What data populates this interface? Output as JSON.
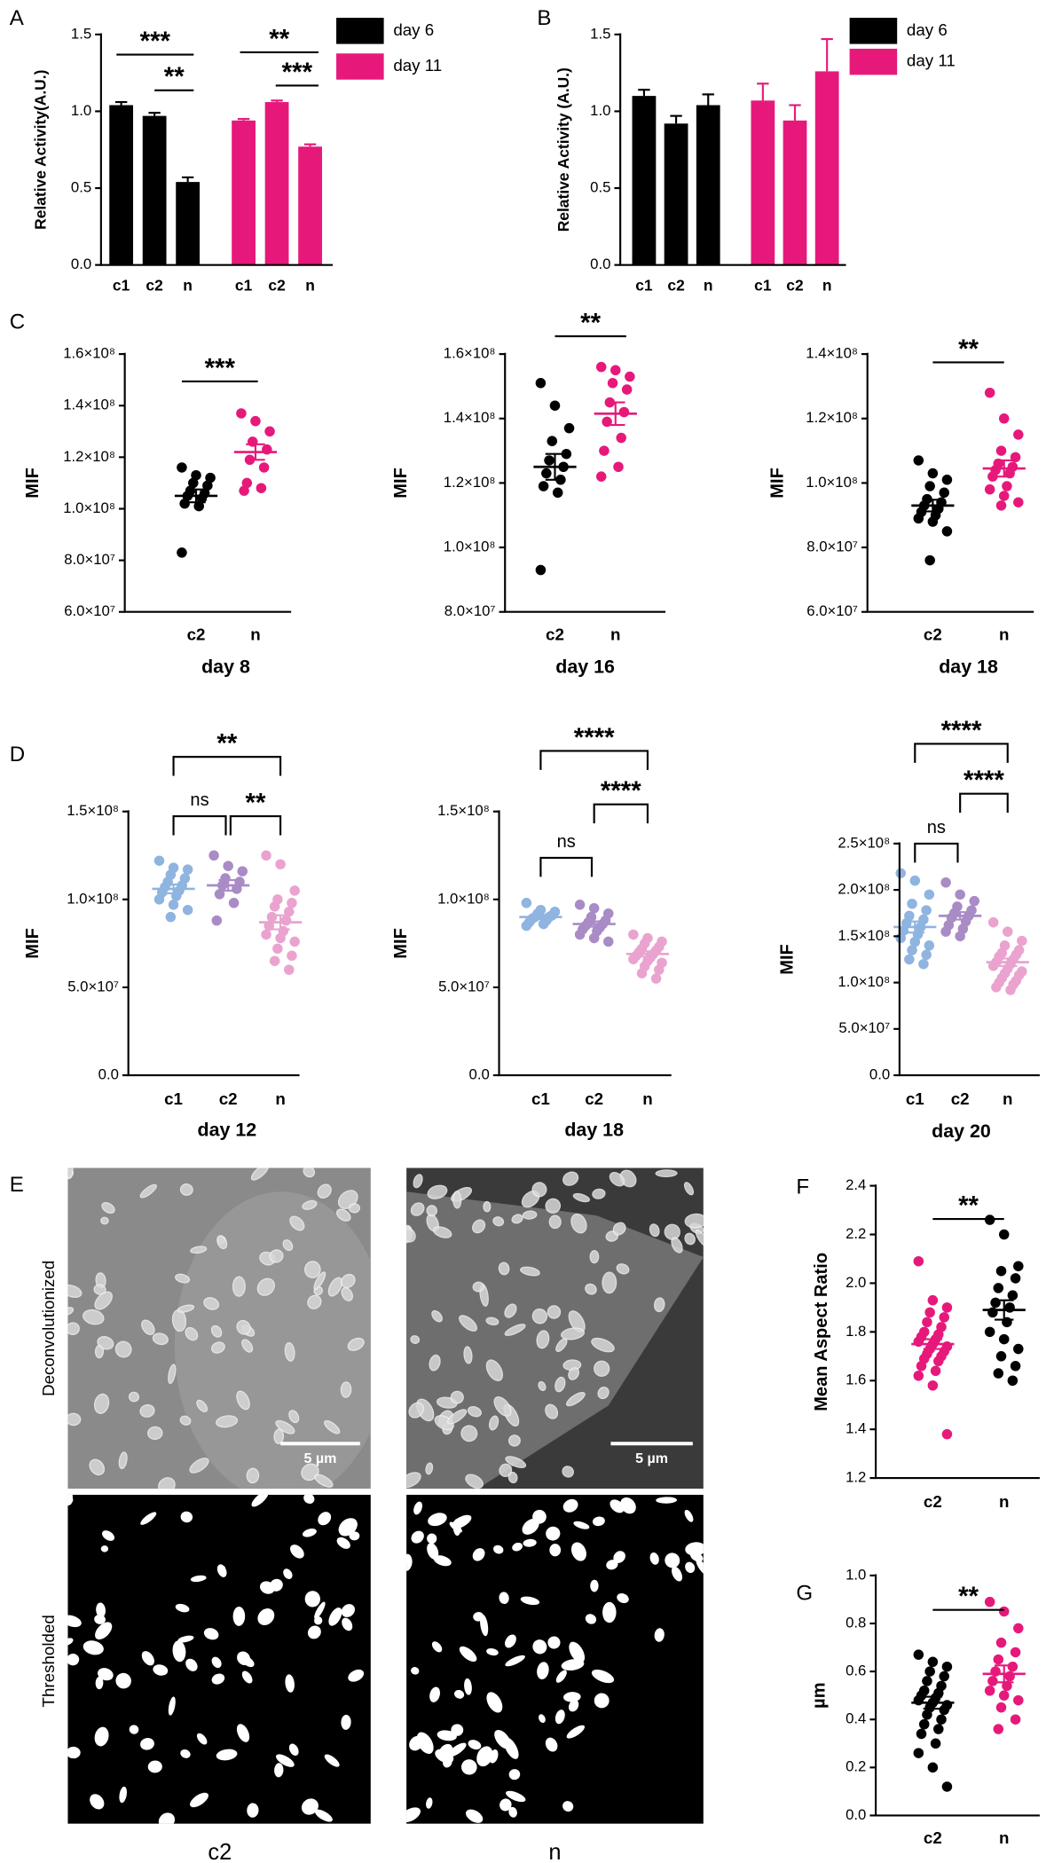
{
  "chart_data": [
    {
      "type": "bar",
      "panel": "A",
      "ylabel": "Relative Activity(A.U.)",
      "categories": [
        "c1",
        "c2",
        "n"
      ],
      "series": [
        {
          "name": "day 6",
          "color": "#000000",
          "values": [
            1.04,
            0.97,
            0.54
          ],
          "errors": [
            0.02,
            0.02,
            0.03
          ]
        },
        {
          "name": "day 11",
          "color": "#e6197b",
          "values": [
            0.94,
            1.06,
            0.77
          ],
          "errors": [
            0.01,
            0.01,
            0.015
          ]
        }
      ],
      "ylim": [
        0,
        1.5
      ],
      "yticks": [
        {
          "value": 0,
          "label": "0.0"
        },
        0.5,
        {
          "value": 1,
          "label": "1.0"
        },
        1.5
      ],
      "annotations": [
        "***",
        "**",
        "**",
        "***"
      ]
    },
    {
      "type": "bar",
      "panel": "B",
      "ylabel": "Relative Activity (A.U.)",
      "categories": [
        "c1",
        "c2",
        "n"
      ],
      "series": [
        {
          "name": "day 6",
          "color": "#000000",
          "values": [
            1.1,
            0.92,
            1.04
          ],
          "errors": [
            0.04,
            0.05,
            0.07
          ]
        },
        {
          "name": "day 11",
          "color": "#e6197b",
          "values": [
            1.07,
            0.94,
            1.26
          ],
          "errors": [
            0.11,
            0.1,
            0.21
          ]
        }
      ],
      "ylim": [
        0,
        1.5
      ],
      "yticks": [
        {
          "value": 0,
          "label": "0.0"
        },
        0.5,
        {
          "value": 1,
          "label": "1.0"
        },
        1.5
      ],
      "annotations": []
    },
    {
      "type": "dot",
      "panel": "C",
      "ylabel": "MIF",
      "xlabel": "day 8",
      "groups": [
        {
          "label": "c2",
          "color": "#000000",
          "values": [
            116000000.0,
            113000000.0,
            112000000.0,
            110000000.0,
            109000000.0,
            107000000.0,
            106000000.0,
            105000000.0,
            104000000.0,
            102000000.0,
            101000000.0,
            83000000.0
          ],
          "mean": 105000000.0,
          "sem": 2500000.0
        },
        {
          "label": "n",
          "color": "#e6197b",
          "values": [
            137000000.0,
            134000000.0,
            130000000.0,
            126000000.0,
            123000000.0,
            119000000.0,
            116000000.0,
            110000000.0,
            108000000.0,
            107000000.0
          ],
          "mean": 122000000.0,
          "sem": 3000000.0
        }
      ],
      "ylim": [
        60000000.0,
        160000000.0
      ],
      "yticks": [
        {
          "value": 60000000.0,
          "label": "6.0×10⁷"
        },
        {
          "value": 80000000.0,
          "label": "8.0×10⁷"
        },
        {
          "value": 100000000.0,
          "label": "1.0×10⁸"
        },
        {
          "value": 120000000.0,
          "label": "1.2×10⁸"
        },
        {
          "value": 140000000.0,
          "label": "1.4×10⁸"
        },
        {
          "value": 160000000.0,
          "label": "1.6×10⁸"
        }
      ],
      "annotations": [
        "***"
      ]
    },
    {
      "type": "dot",
      "ylabel": "MIF",
      "xlabel": "day 16",
      "groups": [
        {
          "label": "c2",
          "color": "#000000",
          "values": [
            151000000.0,
            144000000.0,
            137000000.0,
            133000000.0,
            129000000.0,
            127000000.0,
            125000000.0,
            123000000.0,
            121000000.0,
            119000000.0,
            117000000.0,
            93000000.0
          ],
          "mean": 125000000.0,
          "sem": 4000000.0
        },
        {
          "label": "n",
          "color": "#e6197b",
          "values": [
            156000000.0,
            155000000.0,
            153000000.0,
            151000000.0,
            149000000.0,
            145000000.0,
            142000000.0,
            139000000.0,
            134000000.0,
            130000000.0,
            125000000.0,
            122000000.0
          ],
          "mean": 141500000.0,
          "sem": 3500000.0
        }
      ],
      "ylim": [
        80000000.0,
        160000000.0
      ],
      "yticks": [
        {
          "value": 80000000.0,
          "label": "8.0×10⁷"
        },
        {
          "value": 100000000.0,
          "label": "1.0×10⁸"
        },
        {
          "value": 120000000.0,
          "label": "1.2×10⁸"
        },
        {
          "value": 140000000.0,
          "label": "1.4×10⁸"
        },
        {
          "value": 160000000.0,
          "label": "1.6×10⁸"
        }
      ],
      "annotations": [
        "**"
      ]
    },
    {
      "type": "dot",
      "ylabel": "MIF",
      "xlabel": "day 18",
      "groups": [
        {
          "label": "c2",
          "color": "#000000",
          "values": [
            107000000.0,
            103000000.0,
            101000000.0,
            99000000.0,
            97000000.0,
            95000000.0,
            94000000.0,
            93000000.0,
            92000000.0,
            91000000.0,
            90000000.0,
            89000000.0,
            88000000.0,
            85000000.0,
            76000000.0
          ],
          "mean": 93000000.0,
          "sem": 1800000.0
        },
        {
          "label": "n",
          "color": "#e6197b",
          "values": [
            128000000.0,
            120000000.0,
            115000000.0,
            110000000.0,
            108000000.0,
            106000000.0,
            105000000.0,
            104000000.0,
            103000000.0,
            102000000.0,
            99000000.0,
            98000000.0,
            96000000.0,
            94000000.0,
            93000000.0
          ],
          "mean": 104500000.0,
          "sem": 2500000.0
        }
      ],
      "ylim": [
        60000000.0,
        140000000.0
      ],
      "yticks": [
        {
          "value": 60000000.0,
          "label": "6.0×10⁷"
        },
        {
          "value": 80000000.0,
          "label": "8.0×10⁷"
        },
        {
          "value": 100000000.0,
          "label": "1.0×10⁸"
        },
        {
          "value": 120000000.0,
          "label": "1.2×10⁸"
        },
        {
          "value": 140000000.0,
          "label": "1.4×10⁸"
        }
      ],
      "annotations": [
        "**"
      ]
    },
    {
      "type": "dot",
      "panel": "D",
      "ylabel": "MIF",
      "xlabel": "day 12",
      "groups": [
        {
          "label": "c1",
          "color": "#8fb4e0",
          "values": [
            122000000.0,
            118000000.0,
            117000000.0,
            114000000.0,
            112000000.0,
            110000000.0,
            108000000.0,
            107000000.0,
            105000000.0,
            104000000.0,
            102000000.0,
            100000000.0,
            97000000.0,
            94000000.0,
            90000000.0
          ],
          "mean": 106000000.0,
          "sem": 2500000.0
        },
        {
          "label": "c2",
          "color": "#a98bc6",
          "values": [
            125000000.0,
            119000000.0,
            116000000.0,
            112000000.0,
            110000000.0,
            108000000.0,
            106000000.0,
            103000000.0,
            98000000.0,
            88000000.0
          ],
          "mean": 108000000.0,
          "sem": 3000000.0
        },
        {
          "label": "n",
          "color": "#eaa3cf",
          "values": [
            125000000.0,
            120000000.0,
            105000000.0,
            100000000.0,
            98000000.0,
            96000000.0,
            93000000.0,
            90000000.0,
            88000000.0,
            85000000.0,
            82000000.0,
            80000000.0,
            78000000.0,
            76000000.0,
            72000000.0,
            68000000.0,
            65000000.0,
            60000000.0
          ],
          "mean": 87000000.0,
          "sem": 4000000.0
        }
      ],
      "ylim": [
        0,
        150000000.0
      ],
      "yticks": [
        {
          "value": 0,
          "label": "0.0"
        },
        {
          "value": 50000000.0,
          "label": "5.0×10⁷"
        },
        {
          "value": 100000000.0,
          "label": "1.0×10⁸"
        },
        {
          "value": 150000000.0,
          "label": "1.5×10⁸"
        }
      ],
      "annotations": [
        "**",
        "ns",
        "**"
      ]
    },
    {
      "type": "dot",
      "ylabel": "MIF",
      "xlabel": "day 18",
      "groups": [
        {
          "label": "c1",
          "color": "#8fb4e0",
          "values": [
            98000000.0,
            94000000.0,
            93000000.0,
            92000000.0,
            91000000.0,
            90000000.0,
            90000000.0,
            89000000.0,
            88000000.0,
            87000000.0,
            86000000.0,
            85000000.0
          ],
          "mean": 90000000.0,
          "sem": 1200000.0
        },
        {
          "label": "c2",
          "color": "#a98bc6",
          "values": [
            97000000.0,
            95000000.0,
            92000000.0,
            90000000.0,
            88000000.0,
            87000000.0,
            86000000.0,
            85000000.0,
            84000000.0,
            83000000.0,
            82000000.0,
            80000000.0,
            78000000.0,
            76000000.0
          ],
          "mean": 86000000.0,
          "sem": 1500000.0
        },
        {
          "label": "n",
          "color": "#eaa3cf",
          "values": [
            80000000.0,
            78000000.0,
            76000000.0,
            75000000.0,
            73000000.0,
            72000000.0,
            71000000.0,
            70000000.0,
            69000000.0,
            68000000.0,
            67000000.0,
            66000000.0,
            65000000.0,
            64000000.0,
            62000000.0,
            60000000.0,
            58000000.0,
            55000000.0
          ],
          "mean": 69000000.0,
          "sem": 1500000.0
        }
      ],
      "ylim": [
        0,
        150000000.0
      ],
      "yticks": [
        {
          "value": 0,
          "label": "0.0"
        },
        {
          "value": 50000000.0,
          "label": "5.0×10⁷"
        },
        {
          "value": 100000000.0,
          "label": "1.0×10⁸"
        },
        {
          "value": 150000000.0,
          "label": "1.5×10⁸"
        }
      ],
      "annotations": [
        "****",
        "****",
        "ns"
      ]
    },
    {
      "type": "dot",
      "ylabel": "MIF",
      "xlabel": "day 20",
      "groups": [
        {
          "label": "c1",
          "color": "#8fb4e0",
          "values": [
            218000000.0,
            210000000.0,
            195000000.0,
            185000000.0,
            178000000.0,
            172000000.0,
            168000000.0,
            164000000.0,
            160000000.0,
            156000000.0,
            152000000.0,
            148000000.0,
            144000000.0,
            140000000.0,
            135000000.0,
            130000000.0,
            125000000.0,
            120000000.0
          ],
          "mean": 160000000.0,
          "sem": 6000000.0
        },
        {
          "label": "c2",
          "color": "#a98bc6",
          "values": [
            208000000.0,
            195000000.0,
            188000000.0,
            182000000.0,
            178000000.0,
            175000000.0,
            172000000.0,
            170000000.0,
            166000000.0,
            162000000.0,
            158000000.0,
            155000000.0,
            150000000.0
          ],
          "mean": 172000000.0,
          "sem": 4000000.0
        },
        {
          "label": "n",
          "color": "#eaa3cf",
          "values": [
            165000000.0,
            155000000.0,
            145000000.0,
            140000000.0,
            135000000.0,
            132000000.0,
            130000000.0,
            128000000.0,
            125000000.0,
            122000000.0,
            120000000.0,
            118000000.0,
            115000000.0,
            112000000.0,
            110000000.0,
            108000000.0,
            105000000.0,
            102000000.0,
            100000000.0,
            98000000.0,
            95000000.0,
            92000000.0
          ],
          "mean": 122000000.0,
          "sem": 4000000.0
        }
      ],
      "ylim": [
        0,
        250000000.0
      ],
      "yticks": [
        {
          "value": 0,
          "label": "0.0"
        },
        {
          "value": 50000000.0,
          "label": "5.0×10⁷"
        },
        {
          "value": 100000000.0,
          "label": "1.0×10⁸"
        },
        {
          "value": 150000000.0,
          "label": "1.5×10⁸"
        },
        {
          "value": 200000000.0,
          "label": "2.0×10⁸"
        },
        {
          "value": 250000000.0,
          "label": "2.5×10⁸"
        }
      ],
      "annotations": [
        "****",
        "****",
        "ns"
      ]
    },
    {
      "type": "dot",
      "panel": "F",
      "ylabel": "Mean Aspect Ratio",
      "groups": [
        {
          "label": "c2",
          "color": "#e6197b",
          "values": [
            2.09,
            1.93,
            1.9,
            1.88,
            1.86,
            1.84,
            1.82,
            1.8,
            1.79,
            1.78,
            1.77,
            1.76,
            1.75,
            1.74,
            1.73,
            1.72,
            1.71,
            1.7,
            1.69,
            1.68,
            1.66,
            1.64,
            1.62,
            1.58,
            1.38
          ],
          "mean": 1.75,
          "sem": 0.02
        },
        {
          "label": "n",
          "color": "#000000",
          "values": [
            2.26,
            2.2,
            2.07,
            2.05,
            2.02,
            1.98,
            1.95,
            1.92,
            1.9,
            1.88,
            1.84,
            1.8,
            1.77,
            1.73,
            1.7,
            1.66,
            1.63,
            1.6
          ],
          "mean": 1.89,
          "sem": 0.04
        }
      ],
      "ylim": [
        1.2,
        2.4
      ],
      "yticks": [
        1.2,
        1.4,
        1.6,
        1.8,
        {
          "value": 2,
          "label": "2.0"
        },
        2.2,
        2.4
      ],
      "annotations": [
        "**"
      ]
    },
    {
      "type": "dot",
      "panel": "G",
      "ylabel": "µm",
      "groups": [
        {
          "label": "c2",
          "color": "#000000",
          "values": [
            0.67,
            0.64,
            0.62,
            0.6,
            0.58,
            0.56,
            0.54,
            0.52,
            0.51,
            0.5,
            0.49,
            0.48,
            0.47,
            0.46,
            0.45,
            0.44,
            0.42,
            0.4,
            0.38,
            0.36,
            0.34,
            0.3,
            0.26,
            0.2,
            0.12
          ],
          "mean": 0.47,
          "sem": 0.025
        },
        {
          "label": "n",
          "color": "#e6197b",
          "values": [
            0.89,
            0.85,
            0.78,
            0.72,
            0.68,
            0.65,
            0.62,
            0.6,
            0.58,
            0.56,
            0.54,
            0.52,
            0.5,
            0.48,
            0.45,
            0.4,
            0.36
          ],
          "mean": 0.59,
          "sem": 0.035
        }
      ],
      "ylim": [
        0,
        1
      ],
      "yticks": [
        {
          "value": 0,
          "label": "0.0"
        },
        0.2,
        0.4,
        0.6,
        0.8,
        {
          "value": 1,
          "label": "1.0"
        }
      ],
      "annotations": [
        "**"
      ]
    }
  ],
  "figure_e": {
    "panel": "E",
    "row_labels": [
      "Deconvolutionized",
      "Thresholded"
    ],
    "column_labels": [
      "c2",
      "n"
    ],
    "scale_bars": [
      "5 µm",
      "5 µm"
    ]
  }
}
